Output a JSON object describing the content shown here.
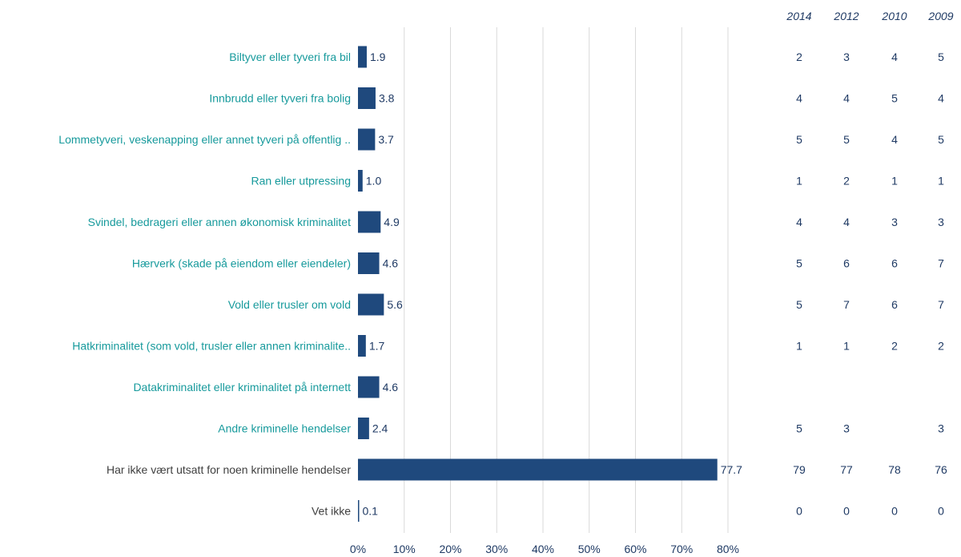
{
  "colors": {
    "bar": "#1f497d",
    "label_teal": "#179a9c",
    "label_dark": "#3f3f3f",
    "value_text": "#1f3a64",
    "grid": "#d9d9d9",
    "axis_text": "#1f3a64",
    "year_header": "#1f3a64",
    "year_cell": "#1f3a64"
  },
  "chart_data": {
    "type": "bar",
    "orientation": "horizontal",
    "xlim": [
      0,
      80
    ],
    "ticks": [
      "0%",
      "10%",
      "20%",
      "30%",
      "40%",
      "50%",
      "60%",
      "70%",
      "80%"
    ],
    "tick_values": [
      0,
      10,
      20,
      30,
      40,
      50,
      60,
      70,
      80
    ],
    "grid": true,
    "categories": [
      "Biltyver eller tyveri fra bil",
      "Innbrudd eller tyveri fra bolig",
      "Lommetyveri, veskenapping eller annet tyveri på offentlig ..",
      "Ran eller utpressing",
      "Svindel, bedrageri eller annen økonomisk kriminalitet",
      "Hærverk (skade på eiendom eller eiendeler)",
      "Vold eller trusler om vold",
      "Hatkriminalitet (som vold, trusler eller annen kriminalite..",
      "Datakriminalitet eller kriminalitet på internett",
      "Andre kriminelle hendelser",
      "Har ikke vært utsatt for noen kriminelle hendelser",
      "Vet ikke"
    ],
    "label_style": [
      "teal",
      "teal",
      "teal",
      "teal",
      "teal",
      "teal",
      "teal",
      "teal",
      "teal",
      "teal",
      "dark",
      "dark"
    ],
    "values": [
      1.9,
      3.8,
      3.7,
      1.0,
      4.9,
      4.6,
      5.6,
      1.7,
      4.6,
      2.4,
      77.7,
      0.1
    ],
    "value_labels": [
      "1.9",
      "3.8",
      "3.7",
      "1.0",
      "4.9",
      "4.6",
      "5.6",
      "1.7",
      "4.6",
      "2.4",
      "77.7",
      "0.1"
    ],
    "comparison_years": [
      "2014",
      "2012",
      "2010",
      "2009"
    ],
    "comparison_table": [
      [
        "2",
        "3",
        "4",
        "5"
      ],
      [
        "4",
        "4",
        "5",
        "4"
      ],
      [
        "5",
        "5",
        "4",
        "5"
      ],
      [
        "1",
        "2",
        "1",
        "1"
      ],
      [
        "4",
        "4",
        "3",
        "3"
      ],
      [
        "5",
        "6",
        "6",
        "7"
      ],
      [
        "5",
        "7",
        "6",
        "7"
      ],
      [
        "1",
        "1",
        "2",
        "2"
      ],
      [
        "",
        "",
        "",
        ""
      ],
      [
        "5",
        "3",
        "",
        "3"
      ],
      [
        "79",
        "77",
        "78",
        "76"
      ],
      [
        "0",
        "0",
        "0",
        "0"
      ]
    ]
  }
}
